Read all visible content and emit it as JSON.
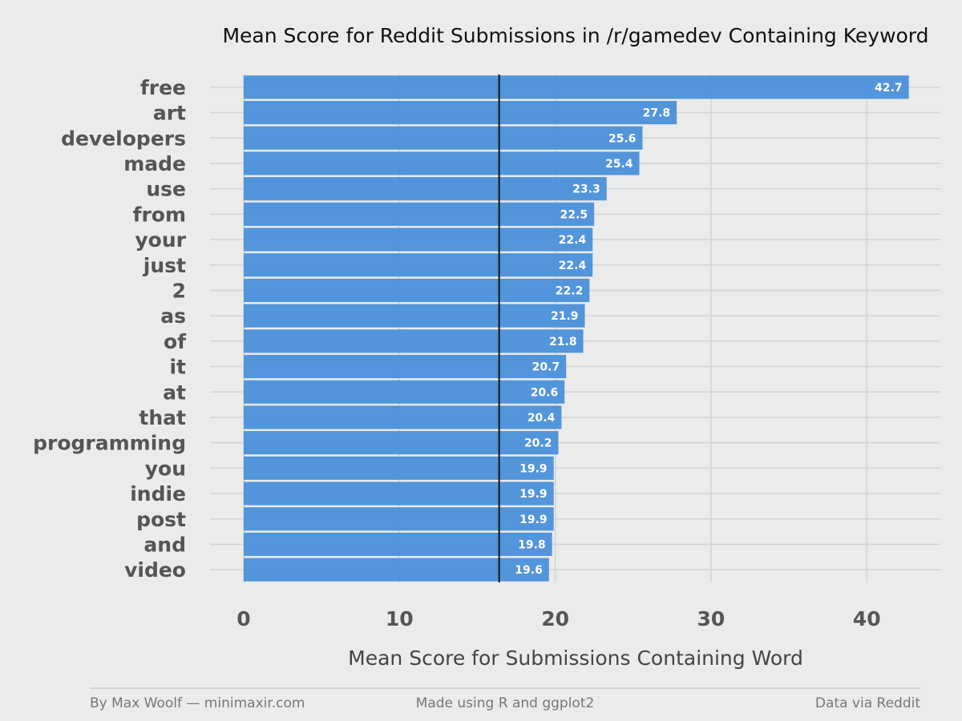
{
  "chart_data": {
    "type": "bar",
    "orientation": "horizontal",
    "title": "Mean Score for Reddit Submissions in /r/gamedev Containing Keyword",
    "xlabel": "Mean Score for Submissions Containing Word",
    "ylabel": "",
    "categories": [
      "free",
      "art",
      "developers",
      "made",
      "use",
      "from",
      "your",
      "just",
      "2",
      "as",
      "of",
      "it",
      "at",
      "that",
      "programming",
      "you",
      "indie",
      "post",
      "and",
      "video"
    ],
    "values": [
      42.7,
      27.8,
      25.6,
      25.4,
      23.3,
      22.5,
      22.4,
      22.4,
      22.2,
      21.9,
      21.8,
      20.7,
      20.6,
      20.4,
      20.2,
      19.9,
      19.9,
      19.9,
      19.8,
      19.6
    ],
    "value_labels": [
      "42.7",
      "27.8",
      "25.6",
      "25.4",
      "23.3",
      "22.5",
      "22.4",
      "22.4",
      "22.2",
      "21.9",
      "21.8",
      "20.7",
      "20.6",
      "20.4",
      "20.2",
      "19.9",
      "19.9",
      "19.9",
      "19.8",
      "19.6"
    ],
    "xlim": [
      0,
      44
    ],
    "xticks": [
      0,
      10,
      20,
      30,
      40
    ],
    "xtick_labels": [
      "0",
      "10",
      "20",
      "30",
      "40"
    ],
    "reference_line": 16.4,
    "grid": true,
    "bar_color": "#4a90d9",
    "reference_line_color": "#111111",
    "background_color": "#ebebeb",
    "grid_color": "#d2d2d2"
  },
  "footer": {
    "left": "By Max Woolf — minimaxir.com",
    "center": "Made using R and ggplot2",
    "right": "Data via Reddit"
  }
}
